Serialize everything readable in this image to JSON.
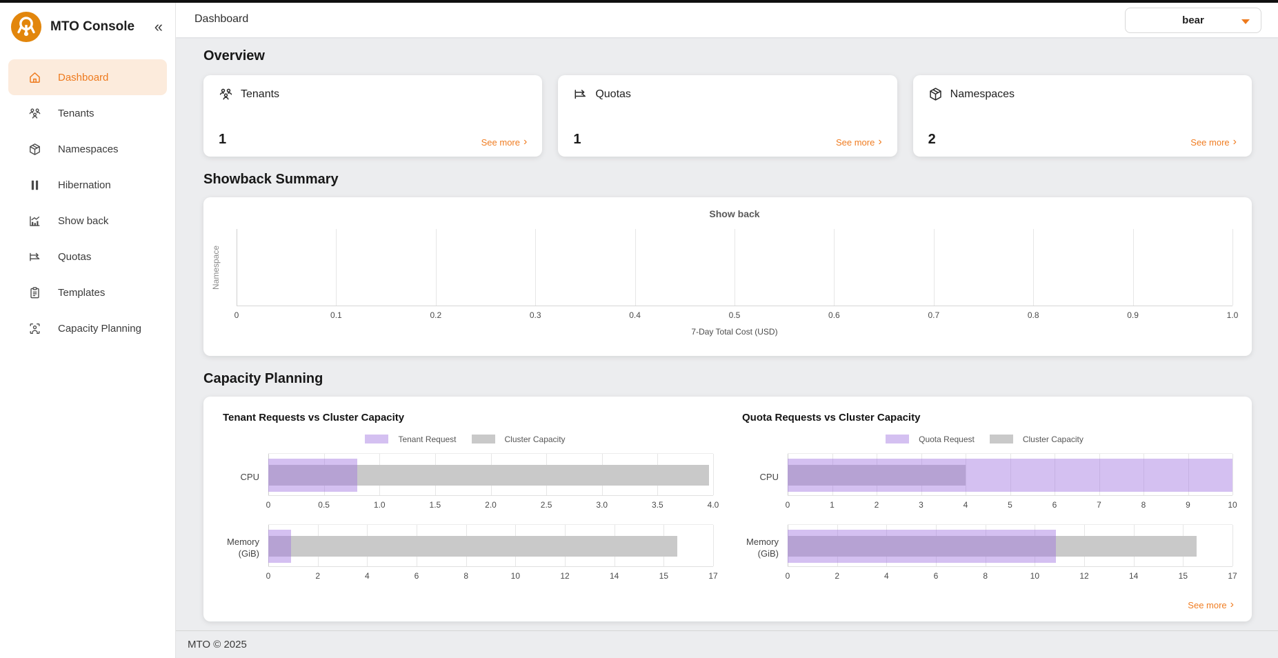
{
  "colors": {
    "accent_orange": "#ee7a1d",
    "active_pill_bg": "#fcebdc",
    "logo_orange": "#e2860c",
    "request_purple": "#d9c3f2",
    "capacity_gray": "#c4c4c4",
    "page_bg": "#ecedef"
  },
  "brand": {
    "name": "MTO Console",
    "collapse_icon": "«"
  },
  "sidebar": {
    "items": [
      {
        "label": "Dashboard",
        "icon": "home-icon",
        "active": true
      },
      {
        "label": "Tenants",
        "icon": "users-icon",
        "active": false
      },
      {
        "label": "Namespaces",
        "icon": "package-icon",
        "active": false
      },
      {
        "label": "Hibernation",
        "icon": "pause-icon",
        "active": false
      },
      {
        "label": "Show back",
        "icon": "bar-chart-icon",
        "active": false
      },
      {
        "label": "Quotas",
        "icon": "quota-arrows-icon",
        "active": false
      },
      {
        "label": "Templates",
        "icon": "clipboard-icon",
        "active": false
      },
      {
        "label": "Capacity Planning",
        "icon": "capacity-gauge-icon",
        "active": false
      }
    ]
  },
  "header": {
    "title": "Dashboard",
    "tenant_selector_value": "bear"
  },
  "sections": {
    "overview": "Overview",
    "showback": "Showback Summary",
    "capacity": "Capacity Planning"
  },
  "overview": {
    "cards": [
      {
        "icon": "users-icon",
        "title": "Tenants",
        "value": "1",
        "see_more": "See more"
      },
      {
        "icon": "quota-arrows-icon",
        "title": "Quotas",
        "value": "1",
        "see_more": "See more"
      },
      {
        "icon": "package-icon",
        "title": "Namespaces",
        "value": "2",
        "see_more": "See more"
      }
    ]
  },
  "capacity": {
    "see_more": "See more"
  },
  "footer": {
    "copyright": "MTO © 2025"
  },
  "chart_data": [
    {
      "id": "showback",
      "type": "bar",
      "title": "Show back",
      "xlabel": "7-Day Total Cost (USD)",
      "ylabel": "Namespace",
      "x_ticks": [
        "0",
        "0.1",
        "0.2",
        "0.3",
        "0.4",
        "0.5",
        "0.6",
        "0.7",
        "0.8",
        "0.9",
        "1.0"
      ],
      "xlim": [
        0,
        1.0
      ],
      "categories": [],
      "series": [],
      "note": "empty plot - no namespace cost bars rendered"
    },
    {
      "id": "tenant-vs-capacity",
      "type": "bar",
      "orientation": "horizontal",
      "title": "Tenant Requests vs Cluster Capacity",
      "legend": [
        {
          "label": "Tenant Request",
          "color": "rgba(160,115,225,0.45)"
        },
        {
          "label": "Cluster Capacity",
          "color": "#c9c9c9"
        }
      ],
      "rows": [
        {
          "category": "CPU",
          "request": 0.8,
          "capacity": 3.96,
          "axis_max": 4.0,
          "ticks": [
            "0",
            "0.5",
            "1.0",
            "1.5",
            "2.0",
            "2.5",
            "3.0",
            "3.5",
            "4.0"
          ]
        },
        {
          "category": "Memory (GiB)",
          "request": 0.9,
          "capacity": 16.0,
          "axis_max": 17.4,
          "ticks": [
            "0",
            "2",
            "4",
            "6",
            "8",
            "10",
            "12",
            "14",
            "15",
            "17"
          ]
        }
      ]
    },
    {
      "id": "quota-vs-capacity",
      "type": "bar",
      "orientation": "horizontal",
      "title": "Quota Requests vs Cluster Capacity",
      "legend": [
        {
          "label": "Quota Request",
          "color": "rgba(160,115,225,0.45)"
        },
        {
          "label": "Cluster Capacity",
          "color": "#c9c9c9"
        }
      ],
      "rows": [
        {
          "category": "CPU",
          "request": 10.0,
          "capacity": 4.0,
          "axis_max": 10.0,
          "ticks": [
            "0",
            "1",
            "2",
            "3",
            "4",
            "5",
            "6",
            "7",
            "8",
            "9",
            "10"
          ]
        },
        {
          "category": "Memory (GiB)",
          "request": 10.5,
          "capacity": 16.0,
          "axis_max": 17.4,
          "ticks": [
            "0",
            "2",
            "4",
            "6",
            "8",
            "10",
            "12",
            "14",
            "15",
            "17"
          ]
        }
      ]
    }
  ]
}
